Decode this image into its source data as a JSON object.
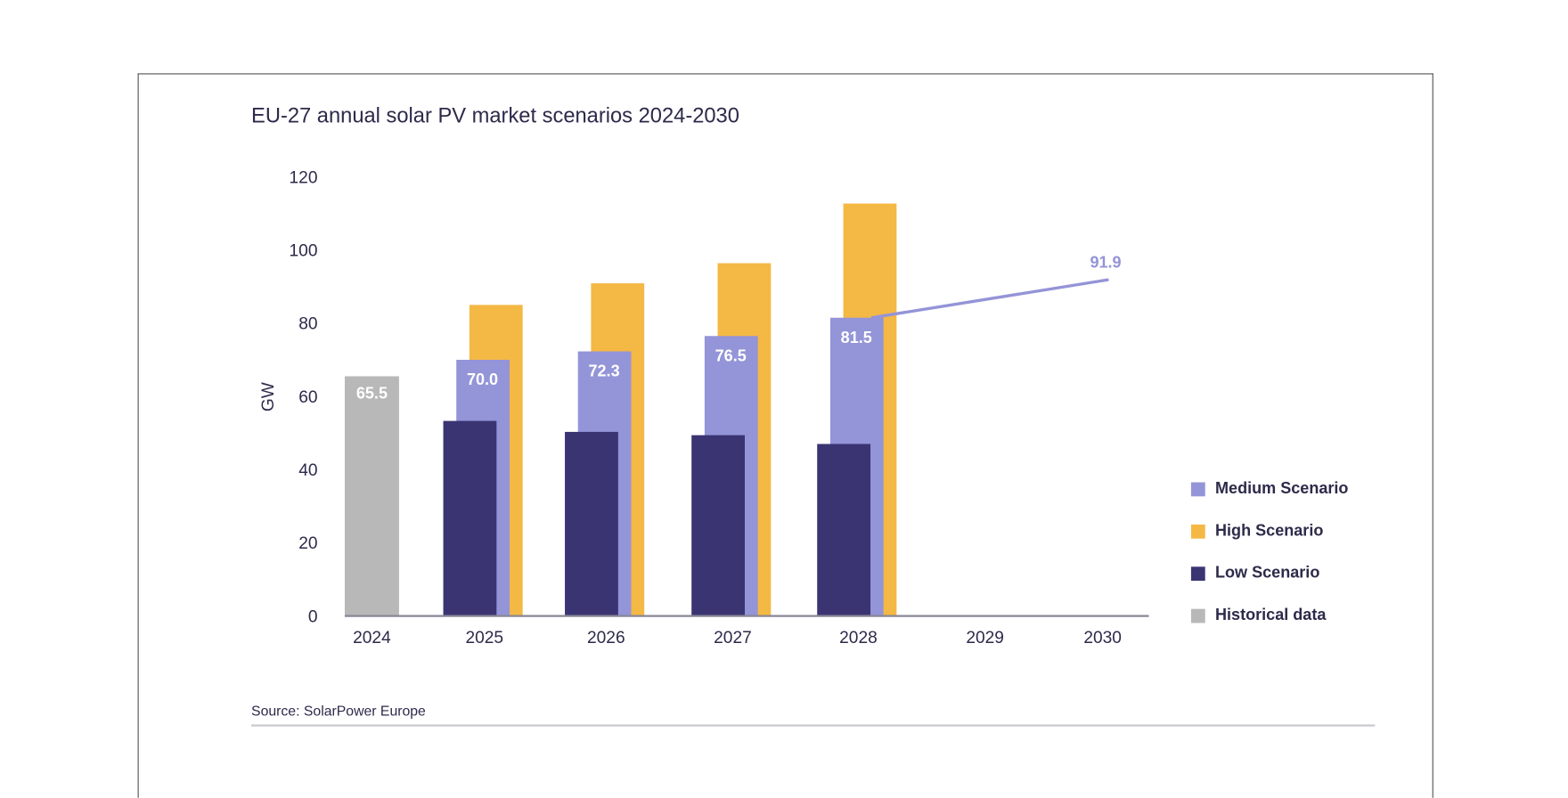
{
  "chart_data": {
    "type": "bar",
    "title": "EU-27 annual solar PV market scenarios 2024-2030",
    "ylabel": "GW",
    "xlabel": "",
    "ylim": [
      0,
      120
    ],
    "yticks": [
      "0",
      "20",
      "40",
      "60",
      "80",
      "100",
      "120"
    ],
    "categories": [
      "2024",
      "2025",
      "2026",
      "2027",
      "2028",
      "2029",
      "2030"
    ],
    "series": [
      {
        "name": "Medium Scenario",
        "color": "#9494d8",
        "values": [
          null,
          70.0,
          72.3,
          76.5,
          81.5,
          null,
          91.9
        ],
        "labels": [
          "",
          "70.0",
          "72.3",
          "76.5",
          "81.5",
          "",
          "91.9"
        ]
      },
      {
        "name": "High Scenario",
        "color": "#f4b844",
        "values": [
          null,
          85,
          90.9,
          96.4,
          112.7,
          null,
          null
        ]
      },
      {
        "name": "Low Scenario",
        "color": "#3a3473",
        "values": [
          null,
          53.3,
          50.3,
          49.4,
          47.0,
          null,
          null
        ]
      },
      {
        "name": "Historical data",
        "color": "#b8b8b8",
        "values": [
          65.5,
          null,
          null,
          null,
          null,
          null,
          null
        ],
        "labels": [
          "65.5"
        ]
      }
    ],
    "grid": false,
    "legend": "right"
  },
  "source": "Source: SolarPower Europe"
}
